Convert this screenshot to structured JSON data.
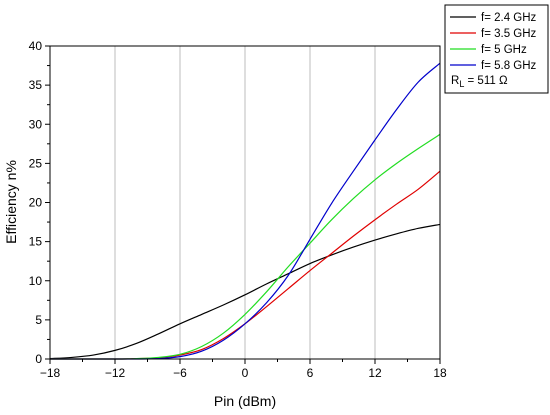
{
  "chart_data": {
    "type": "line",
    "xlabel": "Pin (dBm)",
    "ylabel": "Efficiency n%",
    "xlim": [
      -18,
      18
    ],
    "ylim": [
      0,
      40
    ],
    "xticks": [
      -18,
      -12,
      -6,
      0,
      6,
      12,
      18
    ],
    "xtick_labels": [
      "−18",
      "−12",
      "−6",
      "0",
      "6",
      "12",
      "18"
    ],
    "yticks": [
      0,
      5,
      10,
      15,
      20,
      25,
      30,
      35,
      40
    ],
    "ytick_labels": [
      "0",
      "5",
      "10",
      "15",
      "20",
      "25",
      "30",
      "35",
      "40"
    ],
    "grid": true,
    "legend_position": "outside-top-right",
    "series": [
      {
        "name": "f= 2.4 GHz",
        "color": "#000000",
        "x": [
          -18,
          -16,
          -14,
          -12,
          -10,
          -8,
          -6,
          -4,
          -2,
          0,
          2,
          4,
          6,
          8,
          10,
          12,
          14,
          16,
          18
        ],
        "y": [
          0.05,
          0.2,
          0.5,
          1.1,
          2.0,
          3.2,
          4.5,
          5.7,
          6.9,
          8.2,
          9.6,
          10.9,
          12.2,
          13.3,
          14.3,
          15.2,
          16.0,
          16.7,
          17.2
        ]
      },
      {
        "name": "f= 3.5 GHz",
        "color": "#e00000",
        "x": [
          -18,
          -12,
          -10,
          -8,
          -6,
          -4,
          -2,
          0,
          2,
          4,
          6,
          8,
          10,
          12,
          14,
          16,
          18
        ],
        "y": [
          0,
          0,
          0.05,
          0.15,
          0.5,
          1.2,
          2.6,
          4.5,
          6.7,
          9.0,
          11.3,
          13.5,
          15.7,
          17.8,
          19.8,
          21.7,
          24.0
        ]
      },
      {
        "name": "f= 5 GHz",
        "color": "#22dd22",
        "x": [
          -18,
          -12,
          -10,
          -8,
          -6,
          -4,
          -2,
          0,
          2,
          4,
          6,
          8,
          10,
          12,
          14,
          16,
          18
        ],
        "y": [
          0,
          0,
          0.05,
          0.2,
          0.6,
          1.6,
          3.3,
          5.7,
          8.6,
          11.8,
          14.8,
          17.8,
          20.5,
          22.9,
          25.0,
          26.9,
          28.7
        ]
      },
      {
        "name": "f= 5.8 GHz",
        "color": "#0000cc",
        "x": [
          -18,
          -12,
          -10,
          -8,
          -6,
          -4,
          -2,
          0,
          2,
          4,
          6,
          8,
          10,
          12,
          14,
          16,
          18
        ],
        "y": [
          0,
          0,
          0,
          0.05,
          0.3,
          1.0,
          2.4,
          4.5,
          7.2,
          10.7,
          15.3,
          19.9,
          24.0,
          28.0,
          31.9,
          35.4,
          37.8
        ]
      }
    ],
    "annotation": {
      "main": "R",
      "sub": "L",
      "rest": " = 511 Ω"
    }
  }
}
